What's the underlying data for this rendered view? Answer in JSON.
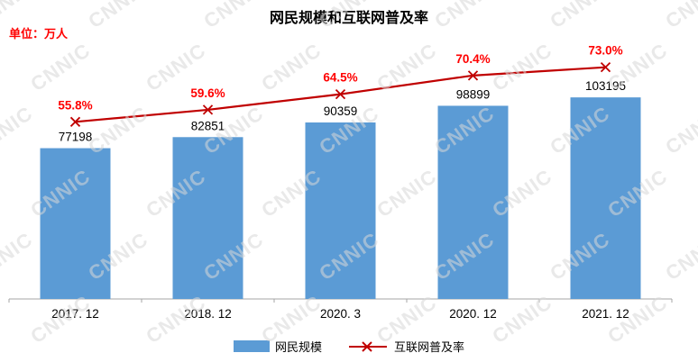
{
  "title": "网民规模和互联网普及率",
  "unit_label": "单位：万人",
  "watermark": "CNNIC",
  "legend": {
    "bars_label": "网民规模",
    "line_label": "互联网普及率"
  },
  "chart_data": {
    "type": "combo",
    "title": "网民规模和互联网普及率",
    "unit": "万人",
    "categories": [
      "2017. 12",
      "2018. 12",
      "2020. 3",
      "2020. 12",
      "2021. 12"
    ],
    "series": [
      {
        "name": "网民规模",
        "kind": "bar",
        "values": [
          77198,
          82851,
          90359,
          98899,
          103195
        ],
        "color": "#5B9BD5",
        "axis": "primary",
        "ylim": [
          0,
          130000
        ]
      },
      {
        "name": "互联网普及率",
        "kind": "line",
        "values": [
          55.8,
          59.6,
          64.5,
          70.4,
          73.0
        ],
        "labels": [
          "55.8%",
          "59.6%",
          "64.5%",
          "70.4%",
          "73.0%"
        ],
        "color": "#C00000",
        "label_color": "#FF0000",
        "marker": "x",
        "axis": "secondary",
        "ylim": [
          0,
          80
        ]
      }
    ],
    "axis_color": "#A6A6A6",
    "grid": false,
    "legend_position": "bottom"
  }
}
